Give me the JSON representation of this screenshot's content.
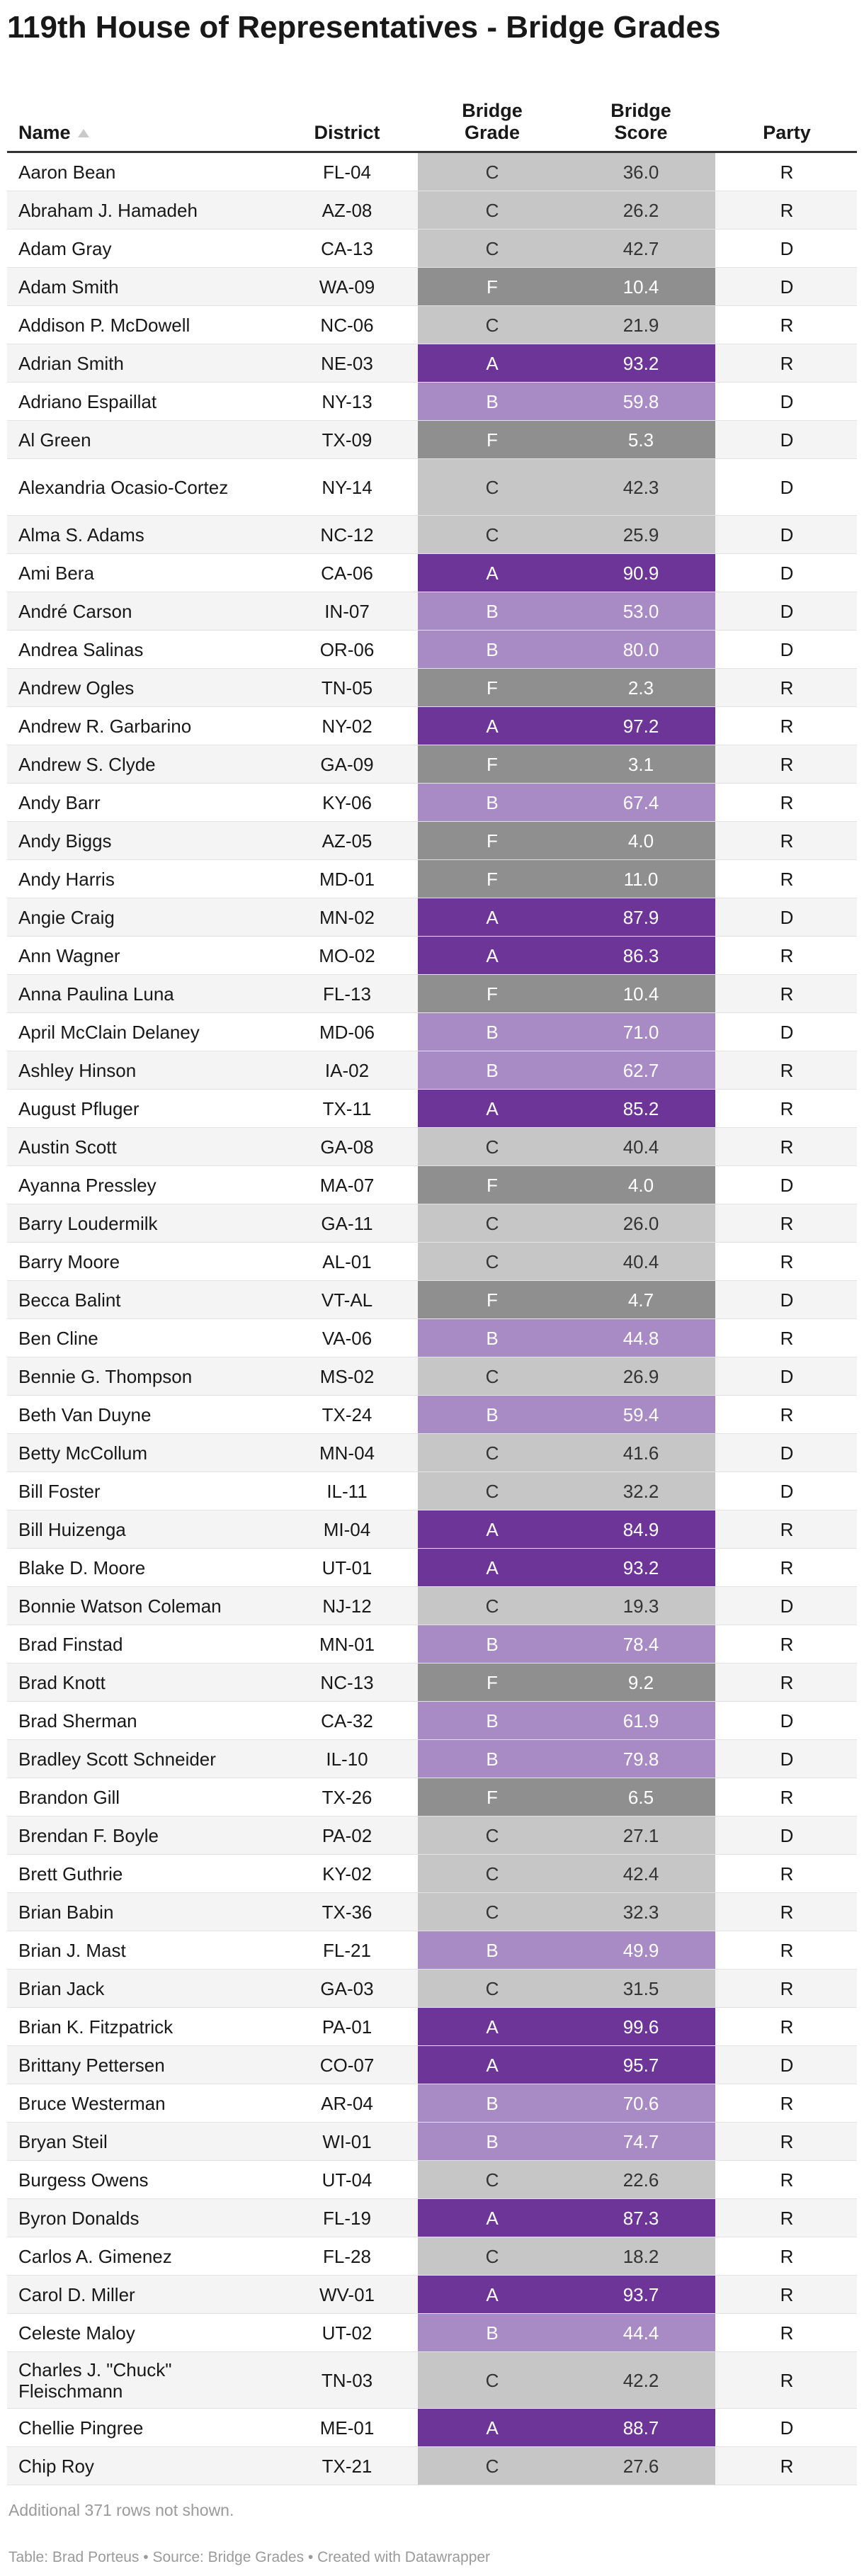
{
  "title": "119th House of Representatives - Bridge Grades",
  "columns": {
    "name": "Name",
    "district": "District",
    "grade": "Bridge\nGrade",
    "score": "Bridge\nScore",
    "party": "Party"
  },
  "sort": {
    "column": "Name",
    "icon": "sort-ascending-icon"
  },
  "colors": {
    "A": "#6d3598",
    "B": "#a88ac4",
    "C": "#c6c6c6",
    "F": "#8f8f8f"
  },
  "rows": [
    {
      "name": "Aaron Bean",
      "district": "FL-04",
      "grade": "C",
      "score": "36.0",
      "party": "R"
    },
    {
      "name": "Abraham J. Hamadeh",
      "district": "AZ-08",
      "grade": "C",
      "score": "26.2",
      "party": "R"
    },
    {
      "name": "Adam Gray",
      "district": "CA-13",
      "grade": "C",
      "score": "42.7",
      "party": "D"
    },
    {
      "name": "Adam Smith",
      "district": "WA-09",
      "grade": "F",
      "score": "10.4",
      "party": "D"
    },
    {
      "name": "Addison P. McDowell",
      "district": "NC-06",
      "grade": "C",
      "score": "21.9",
      "party": "R"
    },
    {
      "name": "Adrian Smith",
      "district": "NE-03",
      "grade": "A",
      "score": "93.2",
      "party": "R"
    },
    {
      "name": "Adriano Espaillat",
      "district": "NY-13",
      "grade": "B",
      "score": "59.8",
      "party": "D"
    },
    {
      "name": "Al Green",
      "district": "TX-09",
      "grade": "F",
      "score": "5.3",
      "party": "D"
    },
    {
      "name": "Alexandria Ocasio-Cortez",
      "district": "NY-14",
      "grade": "C",
      "score": "42.3",
      "party": "D"
    },
    {
      "name": "Alma S. Adams",
      "district": "NC-12",
      "grade": "C",
      "score": "25.9",
      "party": "D"
    },
    {
      "name": "Ami Bera",
      "district": "CA-06",
      "grade": "A",
      "score": "90.9",
      "party": "D"
    },
    {
      "name": "André Carson",
      "district": "IN-07",
      "grade": "B",
      "score": "53.0",
      "party": "D"
    },
    {
      "name": "Andrea Salinas",
      "district": "OR-06",
      "grade": "B",
      "score": "80.0",
      "party": "D"
    },
    {
      "name": "Andrew Ogles",
      "district": "TN-05",
      "grade": "F",
      "score": "2.3",
      "party": "R"
    },
    {
      "name": "Andrew R. Garbarino",
      "district": "NY-02",
      "grade": "A",
      "score": "97.2",
      "party": "R"
    },
    {
      "name": "Andrew S. Clyde",
      "district": "GA-09",
      "grade": "F",
      "score": "3.1",
      "party": "R"
    },
    {
      "name": "Andy Barr",
      "district": "KY-06",
      "grade": "B",
      "score": "67.4",
      "party": "R"
    },
    {
      "name": "Andy Biggs",
      "district": "AZ-05",
      "grade": "F",
      "score": "4.0",
      "party": "R"
    },
    {
      "name": "Andy Harris",
      "district": "MD-01",
      "grade": "F",
      "score": "11.0",
      "party": "R"
    },
    {
      "name": "Angie Craig",
      "district": "MN-02",
      "grade": "A",
      "score": "87.9",
      "party": "D"
    },
    {
      "name": "Ann Wagner",
      "district": "MO-02",
      "grade": "A",
      "score": "86.3",
      "party": "R"
    },
    {
      "name": "Anna Paulina Luna",
      "district": "FL-13",
      "grade": "F",
      "score": "10.4",
      "party": "R"
    },
    {
      "name": "April McClain Delaney",
      "district": "MD-06",
      "grade": "B",
      "score": "71.0",
      "party": "D"
    },
    {
      "name": "Ashley Hinson",
      "district": "IA-02",
      "grade": "B",
      "score": "62.7",
      "party": "R"
    },
    {
      "name": "August Pfluger",
      "district": "TX-11",
      "grade": "A",
      "score": "85.2",
      "party": "R"
    },
    {
      "name": "Austin Scott",
      "district": "GA-08",
      "grade": "C",
      "score": "40.4",
      "party": "R"
    },
    {
      "name": "Ayanna Pressley",
      "district": "MA-07",
      "grade": "F",
      "score": "4.0",
      "party": "D"
    },
    {
      "name": "Barry Loudermilk",
      "district": "GA-11",
      "grade": "C",
      "score": "26.0",
      "party": "R"
    },
    {
      "name": "Barry Moore",
      "district": "AL-01",
      "grade": "C",
      "score": "40.4",
      "party": "R"
    },
    {
      "name": "Becca Balint",
      "district": "VT-AL",
      "grade": "F",
      "score": "4.7",
      "party": "D"
    },
    {
      "name": "Ben Cline",
      "district": "VA-06",
      "grade": "B",
      "score": "44.8",
      "party": "R"
    },
    {
      "name": "Bennie G. Thompson",
      "district": "MS-02",
      "grade": "C",
      "score": "26.9",
      "party": "D"
    },
    {
      "name": "Beth Van Duyne",
      "district": "TX-24",
      "grade": "B",
      "score": "59.4",
      "party": "R"
    },
    {
      "name": "Betty McCollum",
      "district": "MN-04",
      "grade": "C",
      "score": "41.6",
      "party": "D"
    },
    {
      "name": "Bill Foster",
      "district": "IL-11",
      "grade": "C",
      "score": "32.2",
      "party": "D"
    },
    {
      "name": "Bill Huizenga",
      "district": "MI-04",
      "grade": "A",
      "score": "84.9",
      "party": "R"
    },
    {
      "name": "Blake D. Moore",
      "district": "UT-01",
      "grade": "A",
      "score": "93.2",
      "party": "R"
    },
    {
      "name": "Bonnie Watson Coleman",
      "district": "NJ-12",
      "grade": "C",
      "score": "19.3",
      "party": "D"
    },
    {
      "name": "Brad Finstad",
      "district": "MN-01",
      "grade": "B",
      "score": "78.4",
      "party": "R"
    },
    {
      "name": "Brad Knott",
      "district": "NC-13",
      "grade": "F",
      "score": "9.2",
      "party": "R"
    },
    {
      "name": "Brad Sherman",
      "district": "CA-32",
      "grade": "B",
      "score": "61.9",
      "party": "D"
    },
    {
      "name": "Bradley Scott Schneider",
      "district": "IL-10",
      "grade": "B",
      "score": "79.8",
      "party": "D"
    },
    {
      "name": "Brandon Gill",
      "district": "TX-26",
      "grade": "F",
      "score": "6.5",
      "party": "R"
    },
    {
      "name": "Brendan F. Boyle",
      "district": "PA-02",
      "grade": "C",
      "score": "27.1",
      "party": "D"
    },
    {
      "name": "Brett Guthrie",
      "district": "KY-02",
      "grade": "C",
      "score": "42.4",
      "party": "R"
    },
    {
      "name": "Brian Babin",
      "district": "TX-36",
      "grade": "C",
      "score": "32.3",
      "party": "R"
    },
    {
      "name": "Brian J. Mast",
      "district": "FL-21",
      "grade": "B",
      "score": "49.9",
      "party": "R"
    },
    {
      "name": "Brian Jack",
      "district": "GA-03",
      "grade": "C",
      "score": "31.5",
      "party": "R"
    },
    {
      "name": "Brian K. Fitzpatrick",
      "district": "PA-01",
      "grade": "A",
      "score": "99.6",
      "party": "R"
    },
    {
      "name": "Brittany Pettersen",
      "district": "CO-07",
      "grade": "A",
      "score": "95.7",
      "party": "D"
    },
    {
      "name": "Bruce Westerman",
      "district": "AR-04",
      "grade": "B",
      "score": "70.6",
      "party": "R"
    },
    {
      "name": "Bryan Steil",
      "district": "WI-01",
      "grade": "B",
      "score": "74.7",
      "party": "R"
    },
    {
      "name": "Burgess Owens",
      "district": "UT-04",
      "grade": "C",
      "score": "22.6",
      "party": "R"
    },
    {
      "name": "Byron Donalds",
      "district": "FL-19",
      "grade": "A",
      "score": "87.3",
      "party": "R"
    },
    {
      "name": "Carlos A. Gimenez",
      "district": "FL-28",
      "grade": "C",
      "score": "18.2",
      "party": "R"
    },
    {
      "name": "Carol D. Miller",
      "district": "WV-01",
      "grade": "A",
      "score": "93.7",
      "party": "R"
    },
    {
      "name": "Celeste Maloy",
      "district": "UT-02",
      "grade": "B",
      "score": "44.4",
      "party": "R"
    },
    {
      "name": "Charles J. \"Chuck\" Fleischmann",
      "district": "TN-03",
      "grade": "C",
      "score": "42.2",
      "party": "R"
    },
    {
      "name": "Chellie Pingree",
      "district": "ME-01",
      "grade": "A",
      "score": "88.7",
      "party": "D"
    },
    {
      "name": "Chip Roy",
      "district": "TX-21",
      "grade": "C",
      "score": "27.6",
      "party": "R"
    }
  ],
  "note": "Additional 371 rows not shown.",
  "footer": "Table: Brad Porteus • Source: Bridge Grades • Created with Datawrapper",
  "chart_data": {
    "type": "table",
    "columns": [
      "Name",
      "District",
      "Bridge Grade",
      "Bridge Score",
      "Party"
    ]
  }
}
